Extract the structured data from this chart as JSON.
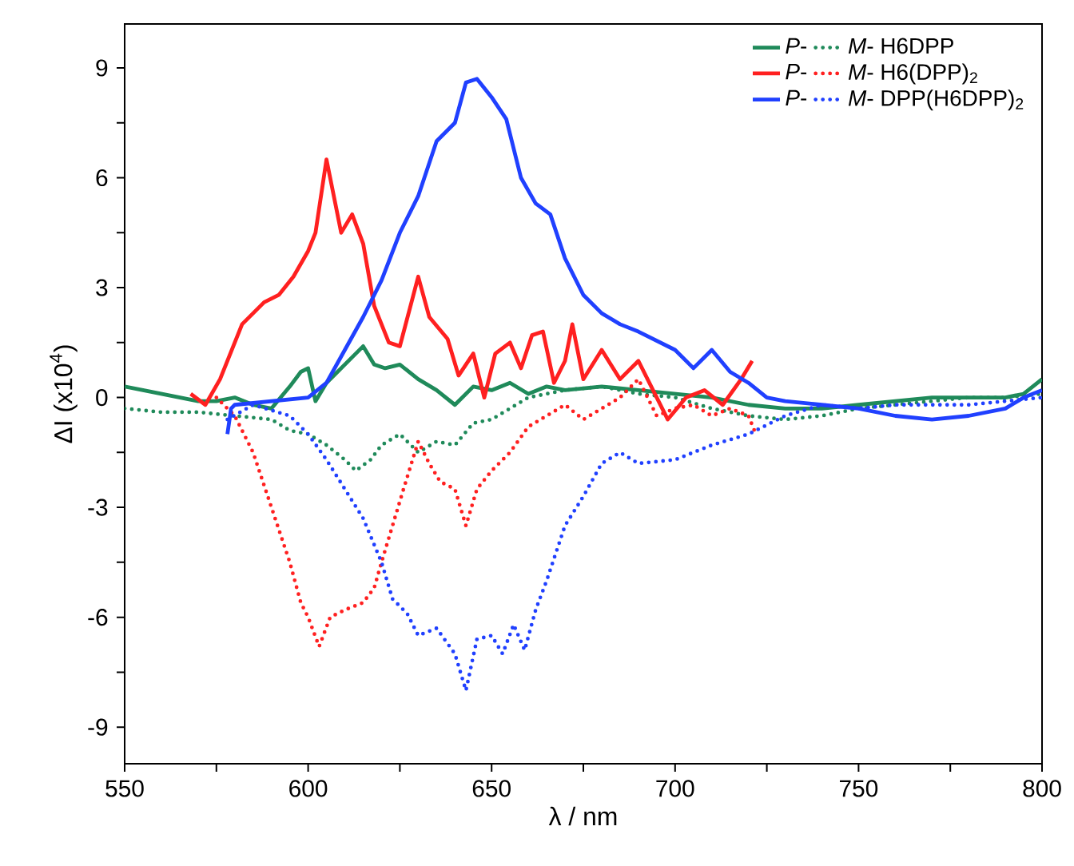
{
  "chart_data": {
    "type": "line",
    "xlabel": "λ / nm",
    "ylabel": "ΔI (x10$^{4}$)",
    "xlim": [
      550,
      800
    ],
    "ylim": [
      -10,
      10.2
    ],
    "xticks": [
      550,
      {
        "value": 575,
        "label": null
      },
      600,
      {
        "value": 625,
        "label": null
      },
      650,
      {
        "value": 675,
        "label": null
      },
      700,
      {
        "value": 725,
        "label": null
      },
      750,
      {
        "value": 775,
        "label": null
      },
      800
    ],
    "yticks": [
      {
        "value": -9,
        "label": "-9"
      },
      {
        "value": -7.5,
        "label": null
      },
      {
        "value": -6,
        "label": "-6"
      },
      {
        "value": -4.5,
        "label": null
      },
      {
        "value": -3,
        "label": "-3"
      },
      {
        "value": -1.5,
        "label": null
      },
      0,
      {
        "value": 1.5,
        "label": null
      },
      3,
      {
        "value": 4.5,
        "label": null
      },
      6,
      {
        "value": 7.5,
        "label": null
      },
      9
    ],
    "legend": "top right",
    "grid": false,
    "series": [
      {
        "name": "*P*-",
        "color": "#1f8a5a",
        "line_style": "solid",
        "x": [
          550,
          555,
          560,
          565,
          570,
          575,
          580,
          585,
          590,
          595,
          598,
          600,
          602,
          605,
          608,
          612,
          615,
          618,
          621,
          625,
          630,
          635,
          640,
          645,
          650,
          655,
          660,
          665,
          670,
          680,
          690,
          700,
          710,
          720,
          730,
          740,
          750,
          760,
          770,
          780,
          790,
          795,
          800
        ],
        "values": [
          0.3,
          0.2,
          0.1,
          0.0,
          -0.1,
          -0.1,
          0.0,
          -0.2,
          -0.3,
          0.3,
          0.7,
          0.8,
          -0.1,
          0.4,
          0.7,
          1.1,
          1.4,
          0.9,
          0.8,
          0.9,
          0.5,
          0.2,
          -0.2,
          0.3,
          0.2,
          0.4,
          0.1,
          0.3,
          0.2,
          0.3,
          0.2,
          0.1,
          0.0,
          -0.2,
          -0.3,
          -0.3,
          -0.2,
          -0.1,
          0.0,
          0.0,
          0.0,
          0.1,
          0.5
        ]
      },
      {
        "name": "*M*- H6DPP",
        "color": "#1f8a5a",
        "line_style": "dotted",
        "x": [
          550,
          560,
          570,
          580,
          590,
          595,
          600,
          605,
          610,
          613,
          617,
          620,
          625,
          630,
          635,
          640,
          645,
          650,
          655,
          660,
          670,
          680,
          690,
          700,
          710,
          720,
          730,
          740,
          750,
          760,
          770,
          780,
          790,
          800
        ],
        "values": [
          -0.3,
          -0.4,
          -0.4,
          -0.5,
          -0.6,
          -0.9,
          -1.0,
          -1.3,
          -1.7,
          -2.0,
          -1.7,
          -1.3,
          -1.0,
          -1.5,
          -1.2,
          -1.3,
          -0.7,
          -0.6,
          -0.3,
          0.0,
          0.2,
          0.3,
          0.1,
          0.0,
          -0.3,
          -0.5,
          -0.6,
          -0.5,
          -0.3,
          -0.2,
          -0.1,
          0.0,
          0.0,
          0.1
        ]
      },
      {
        "name": "*P*-",
        "color": "#ff2020",
        "line_style": "solid",
        "x": [
          568,
          572,
          576,
          582,
          588,
          592,
          596,
          600,
          602,
          605,
          609,
          612,
          615,
          618,
          622,
          625,
          630,
          633,
          638,
          641,
          645,
          648,
          651,
          655,
          658,
          661,
          664,
          667,
          670,
          672,
          675,
          680,
          685,
          690,
          695,
          698,
          703,
          708,
          713,
          718,
          721
        ],
        "values": [
          0.1,
          -0.2,
          0.5,
          2.0,
          2.6,
          2.8,
          3.3,
          4.0,
          4.5,
          6.5,
          4.5,
          5.0,
          4.2,
          2.5,
          1.5,
          1.4,
          3.3,
          2.2,
          1.6,
          0.6,
          1.2,
          0.0,
          1.2,
          1.5,
          0.8,
          1.7,
          1.8,
          0.4,
          1.0,
          2.0,
          0.5,
          1.3,
          0.5,
          1.0,
          0.0,
          -0.6,
          0.0,
          0.2,
          -0.2,
          0.5,
          1.0
        ]
      },
      {
        "name": "*M*- H6(DPP)$_{2}$",
        "color": "#ff2020",
        "line_style": "dotted",
        "x": [
          575,
          580,
          585,
          590,
          595,
          598,
          600,
          603,
          606,
          610,
          615,
          618,
          620,
          623,
          626,
          630,
          633,
          636,
          640,
          643,
          646,
          650,
          655,
          660,
          665,
          670,
          675,
          680,
          685,
          690,
          695,
          700,
          705,
          710,
          715,
          720,
          722
        ],
        "values": [
          0.0,
          -0.5,
          -1.5,
          -3.0,
          -4.5,
          -5.6,
          -6.0,
          -6.8,
          -6.0,
          -5.8,
          -5.6,
          -5.2,
          -4.5,
          -3.5,
          -2.5,
          -1.2,
          -1.8,
          -2.3,
          -2.5,
          -3.5,
          -2.5,
          -2.0,
          -1.5,
          -0.8,
          -0.5,
          -0.2,
          -0.6,
          -0.3,
          0.0,
          0.5,
          -0.5,
          -0.3,
          -0.2,
          -0.5,
          -0.3,
          -0.5,
          -1.0
        ]
      },
      {
        "name": "*P*-",
        "color": "#2040ff",
        "line_style": "solid",
        "x": [
          578,
          579,
          580,
          590,
          600,
          605,
          610,
          615,
          620,
          625,
          630,
          635,
          640,
          643,
          646,
          650,
          654,
          658,
          662,
          666,
          670,
          675,
          680,
          685,
          690,
          700,
          705,
          710,
          715,
          720,
          725,
          730,
          740,
          750,
          760,
          770,
          780,
          790,
          795,
          800
        ],
        "values": [
          -1.0,
          -0.3,
          -0.2,
          -0.1,
          0.0,
          0.4,
          1.3,
          2.2,
          3.2,
          4.5,
          5.5,
          7.0,
          7.5,
          8.6,
          8.7,
          8.2,
          7.6,
          6.0,
          5.3,
          5.0,
          3.8,
          2.8,
          2.3,
          2.0,
          1.8,
          1.3,
          0.8,
          1.3,
          0.7,
          0.4,
          0.0,
          -0.1,
          -0.2,
          -0.3,
          -0.5,
          -0.6,
          -0.5,
          -0.3,
          0.0,
          0.2
        ]
      },
      {
        "name": "*M*- DPP(H6DPP)$_{2}$",
        "color": "#2040ff",
        "line_style": "dotted",
        "x": [
          578,
          585,
          595,
          600,
          605,
          610,
          615,
          620,
          623,
          627,
          630,
          635,
          640,
          643,
          646,
          650,
          653,
          656,
          659,
          662,
          665,
          670,
          675,
          680,
          685,
          690,
          700,
          710,
          720,
          730,
          740,
          750,
          760,
          780,
          800
        ],
        "values": [
          -0.6,
          -0.2,
          -0.5,
          -1.0,
          -1.7,
          -2.5,
          -3.3,
          -4.5,
          -5.5,
          -5.9,
          -6.5,
          -6.3,
          -7.0,
          -8.0,
          -6.6,
          -6.5,
          -7.0,
          -6.2,
          -6.9,
          -5.8,
          -5.0,
          -3.5,
          -2.7,
          -1.8,
          -1.5,
          -1.8,
          -1.7,
          -1.3,
          -1.0,
          -0.5,
          -0.2,
          -0.3,
          -0.2,
          -0.2,
          0.0
        ]
      }
    ]
  }
}
